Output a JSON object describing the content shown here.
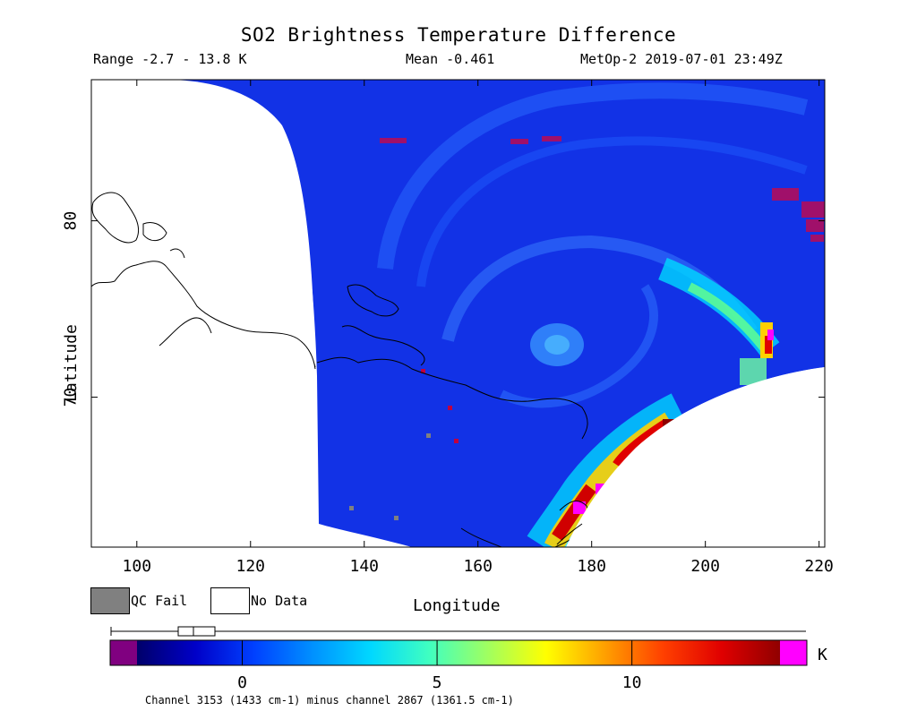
{
  "header": {
    "title": "SO2 Brightness Temperature Difference",
    "range": "Range -2.7 - 13.8 K",
    "mean": "Mean -0.461",
    "satellite_time": "MetOp-2 2019-07-01 23:49Z"
  },
  "legend": {
    "qc_fail_label": "QC Fail",
    "no_data_label": "No Data",
    "qc_fail_color": "#808080",
    "no_data_color": "#ffffff"
  },
  "colorbar": {
    "unit": "K",
    "ticks": [
      "0",
      "5",
      "10"
    ],
    "tick_values": [
      0,
      5,
      10
    ],
    "vmin": -2.7,
    "vmax": 13.8,
    "under_color": "#800080",
    "over_color": "#ff00ff",
    "stops": [
      "#00006a",
      "#0000c8",
      "#0040ff",
      "#0090ff",
      "#00d8ff",
      "#40ffc0",
      "#a0ff60",
      "#ffff00",
      "#ffa000",
      "#ff4000",
      "#e00000",
      "#900000"
    ],
    "footnote": "Channel 3153 (1433 cm-1) minus channel 2867 (1361.5 cm-1)"
  },
  "chart_data": {
    "type": "heatmap",
    "title": "SO2 Brightness Temperature Difference",
    "xlabel": "Longitude",
    "ylabel": "Latitude",
    "xlim": [
      92,
      221
    ],
    "ylim": [
      61.5,
      88
    ],
    "xticks": [
      100,
      120,
      140,
      160,
      180,
      200,
      220
    ],
    "xtick_labels": [
      "100",
      "120",
      "140",
      "160",
      "180",
      "200",
      "220"
    ],
    "yticks": [
      70,
      80
    ],
    "ytick_labels": [
      "70",
      "80"
    ],
    "colormap_range": [
      -2.7,
      13.8
    ],
    "colorbar_label": "K",
    "features": [
      {
        "region": "swath background",
        "value_range": [
          -1.5,
          0.5
        ]
      },
      {
        "region": "cyclone center near 172E 73N",
        "value_range": [
          2,
          3
        ]
      },
      {
        "region": "band east edge near 207-212E 71-75N",
        "value_range": [
          5,
          12
        ]
      },
      {
        "region": "band south edge near 172-192E 63-68N",
        "value_range": [
          6,
          13
        ]
      }
    ]
  }
}
